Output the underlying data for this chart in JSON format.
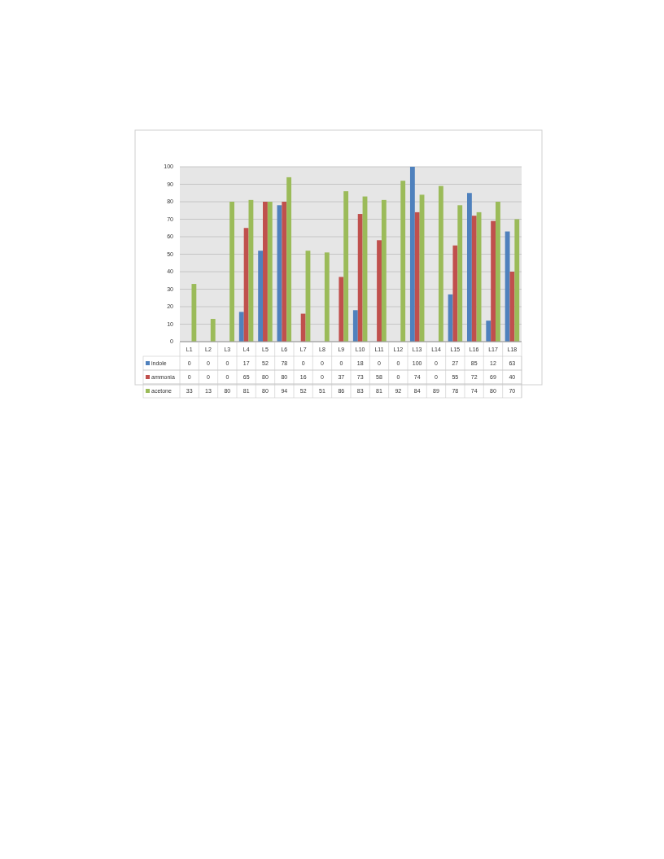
{
  "chart_data": {
    "type": "bar",
    "categories": [
      "L1",
      "L2",
      "L3",
      "L4",
      "L5",
      "L6",
      "L7",
      "L8",
      "L9",
      "L10",
      "L11",
      "L12",
      "L13",
      "L14",
      "L15",
      "L16",
      "L17",
      "L18"
    ],
    "series": [
      {
        "name": "indole",
        "color": "#4f81bd",
        "values": [
          0,
          0,
          0,
          17,
          52,
          78,
          0,
          0,
          0,
          18,
          0,
          0,
          100,
          0,
          27,
          85,
          12,
          63
        ]
      },
      {
        "name": "ammonia",
        "color": "#c0504d",
        "values": [
          0,
          0,
          0,
          65,
          80,
          80,
          16,
          0,
          37,
          73,
          58,
          0,
          74,
          0,
          55,
          72,
          69,
          40
        ]
      },
      {
        "name": "acetone",
        "color": "#9bbb59",
        "values": [
          33,
          13,
          80,
          81,
          80,
          94,
          52,
          51,
          86,
          83,
          81,
          92,
          84,
          89,
          78,
          74,
          80,
          70
        ]
      }
    ],
    "ylim": [
      0,
      100
    ],
    "yticks": [
      0,
      10,
      20,
      30,
      40,
      50,
      60,
      70,
      80,
      90,
      100
    ],
    "grid": "y",
    "legend": "bottom",
    "data_labels": true
  }
}
